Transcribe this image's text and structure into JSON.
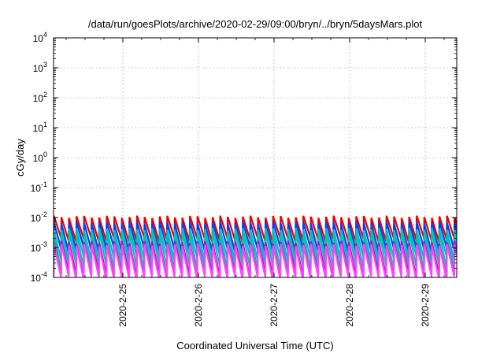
{
  "chart_data": {
    "type": "line",
    "title": "/data/run/goesPlots/archive/2020-02-29/09:00/bryn/../bryn/5daysMars.plot",
    "xlabel": "Coordinated Universal Time (UTC)",
    "ylabel": "cGy/day",
    "yscale": "log",
    "ylim": [
      0.0001,
      10000
    ],
    "xlim": [
      "2020-02-24T02:00",
      "2020-02-29T10:00"
    ],
    "grid": true,
    "y_ticks": [
      {
        "value": 0.0001,
        "base": "10",
        "exp": "-4"
      },
      {
        "value": 0.001,
        "base": "10",
        "exp": "-3"
      },
      {
        "value": 0.01,
        "base": "10",
        "exp": "-2"
      },
      {
        "value": 0.1,
        "base": "10",
        "exp": "-1"
      },
      {
        "value": 1,
        "base": "10",
        "exp": "0"
      },
      {
        "value": 10,
        "base": "10",
        "exp": "1"
      },
      {
        "value": 100,
        "base": "10",
        "exp": "2"
      },
      {
        "value": 1000,
        "base": "10",
        "exp": "3"
      },
      {
        "value": 10000,
        "base": "10",
        "exp": "4"
      }
    ],
    "x_ticks": [
      {
        "value": "2020-02-25T00:00",
        "label": "2020-2-25"
      },
      {
        "value": "2020-02-26T00:00",
        "label": "2020-2-26"
      },
      {
        "value": "2020-02-27T00:00",
        "label": "2020-2-27"
      },
      {
        "value": "2020-02-28T00:00",
        "label": "2020-2-28"
      },
      {
        "value": "2020-02-29T00:00",
        "label": "2020-2-29"
      }
    ],
    "cycle_hours": 2.4,
    "series": [
      {
        "color": "#ee0000",
        "peak": 0.0105,
        "trough": 0.0018
      },
      {
        "color": "#0044ee",
        "peak": 0.0068,
        "trough": 0.00085
      },
      {
        "color": "#00bbdd",
        "peak": 0.0041,
        "trough": 0.00045
      },
      {
        "color": "#00c8a0",
        "peak": 0.003,
        "trough": 0.00022
      },
      {
        "color": "#cc00cc",
        "peak": 0.0015,
        "trough": 0.00012
      },
      {
        "color": "#ff44ff",
        "peak": 0.0012,
        "trough": 9.8e-05
      }
    ]
  }
}
